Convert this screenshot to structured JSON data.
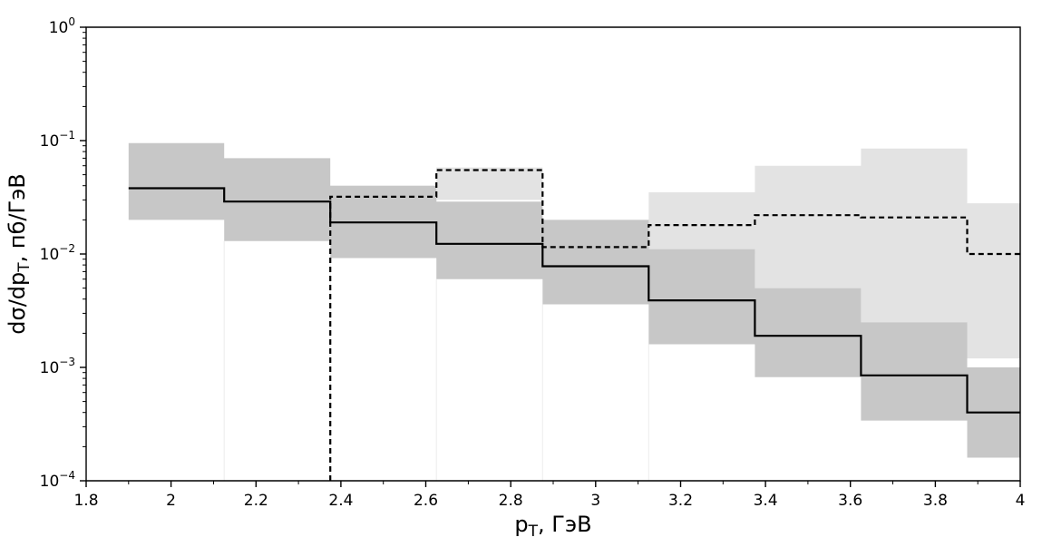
{
  "figure": {
    "background": "#ffffff"
  },
  "chart_data": {
    "type": "step-histogram",
    "title": "",
    "xlabel": {
      "pre": "p",
      "sub": "T",
      "post": ", ГэВ"
    },
    "ylabel": {
      "pre": "dσ/dp",
      "sub": "T",
      "post": ", пб/ГэВ"
    },
    "xlim": [
      1.8,
      4.0
    ],
    "ylog_range": [
      -4,
      0
    ],
    "grid": false,
    "legend": null,
    "colors": {
      "axis": "#000000",
      "solid_band": "#c7c7c7",
      "dashed_band": "#e3e3e3"
    },
    "x_ticks": [
      {
        "value": 1.8,
        "label": "1.8"
      },
      {
        "value": 2.0,
        "label": "2"
      },
      {
        "value": 2.2,
        "label": "2.2"
      },
      {
        "value": 2.4,
        "label": "2.4"
      },
      {
        "value": 2.6,
        "label": "2.6"
      },
      {
        "value": 2.8,
        "label": "2.8"
      },
      {
        "value": 3.0,
        "label": "3"
      },
      {
        "value": 3.2,
        "label": "3.2"
      },
      {
        "value": 3.4,
        "label": "3.4"
      },
      {
        "value": 3.6,
        "label": "3.6"
      },
      {
        "value": 3.8,
        "label": "3.8"
      },
      {
        "value": 4.0,
        "label": "4"
      }
    ],
    "y_ticks": [
      {
        "exponent": 0,
        "label_base": "10",
        "label_exp": "0"
      },
      {
        "exponent": -1,
        "label_base": "10",
        "label_exp": "−1"
      },
      {
        "exponent": -2,
        "label_base": "10",
        "label_exp": "−2"
      },
      {
        "exponent": -3,
        "label_base": "10",
        "label_exp": "−3"
      },
      {
        "exponent": -4,
        "label_base": "10",
        "label_exp": "−4"
      }
    ],
    "edge_guides": {
      "x": [
        2.125,
        2.375,
        2.625,
        2.875,
        3.125
      ],
      "color": "#ececec"
    },
    "series": [
      {
        "name": "solid-histogram",
        "line_style": "solid",
        "line_color": "#000000",
        "band_color": "#c7c7c7",
        "bin_edges": [
          1.9,
          2.125,
          2.375,
          2.625,
          2.875,
          3.125,
          3.375,
          3.625,
          3.875,
          4.0
        ],
        "values": [
          0.038,
          0.029,
          0.019,
          0.0123,
          0.0078,
          0.0039,
          0.0019,
          0.00085,
          0.0004
        ],
        "band_low": [
          0.02,
          0.013,
          0.0092,
          0.006,
          0.0036,
          0.0016,
          0.00082,
          0.00034,
          0.00016
        ],
        "band_high": [
          0.095,
          0.07,
          0.04,
          0.029,
          0.02,
          0.011,
          0.005,
          0.0025,
          0.001
        ],
        "start_drop_to_axis": false
      },
      {
        "name": "dashed-histogram",
        "line_style": "dashed",
        "line_color": "#000000",
        "band_color": "#e3e3e3",
        "bin_edges": [
          2.375,
          2.625,
          2.875,
          3.125,
          3.375,
          3.625,
          3.875,
          4.0
        ],
        "values": [
          0.032,
          0.055,
          0.0115,
          0.018,
          0.022,
          0.021,
          0.01
        ],
        "band_low": [
          0.018,
          0.03,
          0.006,
          0.01,
          0.005,
          0.0025,
          0.0012
        ],
        "band_high": [
          0.04,
          0.058,
          0.02,
          0.035,
          0.06,
          0.085,
          0.028
        ],
        "start_drop_to_axis": true
      }
    ]
  }
}
